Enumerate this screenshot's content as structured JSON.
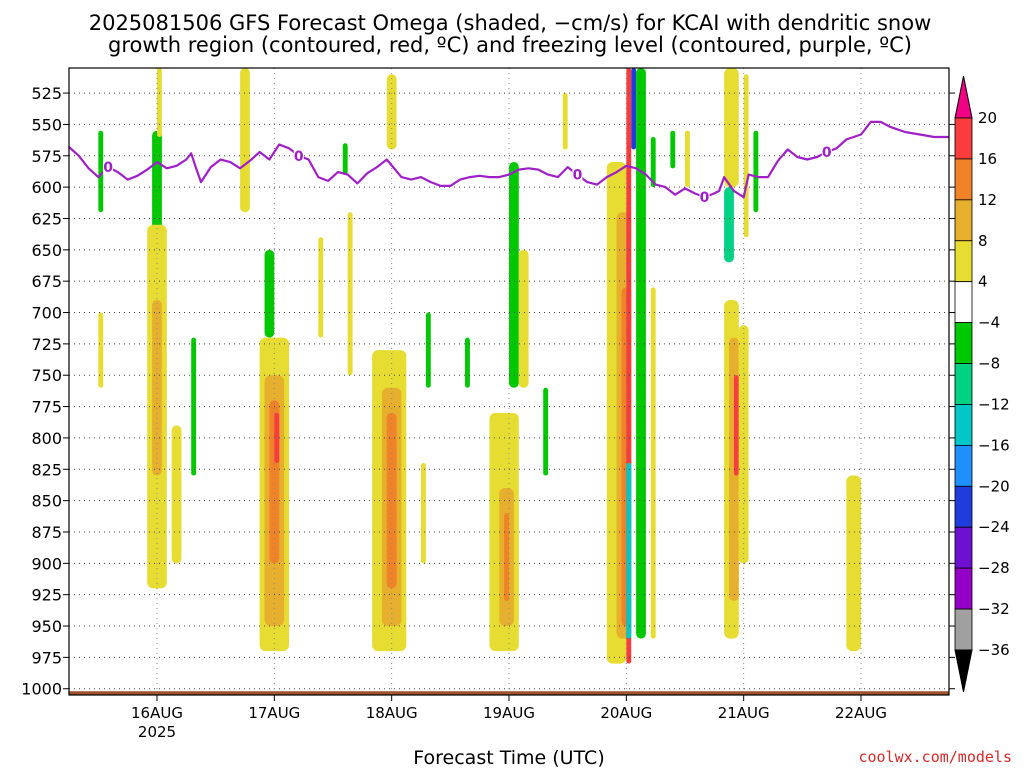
{
  "chart_data": {
    "type": "heatmap",
    "title_lines": [
      "2025081506 GFS Forecast Omega (shaded, −cm/s) for KCAI with dendritic snow",
      "growth region (contoured, red, ºC) and freezing level (contoured, purple, ºC)"
    ],
    "xlabel": "Forecast Time (UTC)",
    "ylabel": "",
    "y_axis": {
      "units": "hPa",
      "inverted": true,
      "ylim": [
        1005,
        505
      ],
      "ticks": [
        525,
        550,
        575,
        600,
        625,
        650,
        675,
        700,
        725,
        750,
        775,
        800,
        825,
        850,
        875,
        900,
        925,
        950,
        975,
        1000
      ]
    },
    "x_axis": {
      "xlim": [
        "2025-08-15 06",
        "2025-08-22 18"
      ],
      "ticks": [
        {
          "label": "16AUG",
          "time": "2025-08-16 00"
        },
        {
          "label": "17AUG",
          "time": "2025-08-17 00"
        },
        {
          "label": "18AUG",
          "time": "2025-08-18 00"
        },
        {
          "label": "19AUG",
          "time": "2025-08-19 00"
        },
        {
          "label": "20AUG",
          "time": "2025-08-20 00"
        },
        {
          "label": "21AUG",
          "time": "2025-08-21 00"
        },
        {
          "label": "22AUG",
          "time": "2025-08-22 00"
        }
      ],
      "year_label": "2025"
    },
    "grid": true,
    "colorbar": {
      "levels": [
        -36,
        -32,
        -28,
        -24,
        -20,
        -16,
        -12,
        -8,
        -4,
        4,
        8,
        12,
        16,
        20
      ],
      "colors": [
        "#000000",
        "#a0a0a0",
        "#9400c8",
        "#6e10d2",
        "#1f3ddc",
        "#1e90ff",
        "#00c8c8",
        "#00d283",
        "#00c800",
        "#ffffff",
        "#e6dc32",
        "#e6af2d",
        "#f08228",
        "#fa3c3c",
        "#f00082"
      ],
      "extend": "both"
    },
    "freezing_level": {
      "contour_label": "0",
      "color": "#a020c8",
      "points": [
        [
          "2025-08-15 06",
          568
        ],
        [
          "2025-08-15 08",
          575
        ],
        [
          "2025-08-15 10",
          585
        ],
        [
          "2025-08-15 12",
          592
        ],
        [
          "2025-08-15 14",
          584
        ],
        [
          "2025-08-15 16",
          588
        ],
        [
          "2025-08-15 18",
          594
        ],
        [
          "2025-08-15 20",
          591
        ],
        [
          "2025-08-15 22",
          586
        ],
        [
          "2025-08-16 00",
          580
        ],
        [
          "2025-08-16 02",
          585
        ],
        [
          "2025-08-16 04",
          583
        ],
        [
          "2025-08-16 06",
          578
        ],
        [
          "2025-08-16 07",
          573
        ],
        [
          "2025-08-16 08",
          585
        ],
        [
          "2025-08-16 09",
          596
        ],
        [
          "2025-08-16 11",
          584
        ],
        [
          "2025-08-16 13",
          578
        ],
        [
          "2025-08-16 15",
          580
        ],
        [
          "2025-08-16 17",
          585
        ],
        [
          "2025-08-16 19",
          579
        ],
        [
          "2025-08-16 21",
          572
        ],
        [
          "2025-08-16 23",
          578
        ],
        [
          "2025-08-17 01",
          566
        ],
        [
          "2025-08-17 03",
          569
        ],
        [
          "2025-08-17 05",
          575
        ],
        [
          "2025-08-17 07",
          578
        ],
        [
          "2025-08-17 09",
          592
        ],
        [
          "2025-08-17 11",
          595
        ],
        [
          "2025-08-17 13",
          588
        ],
        [
          "2025-08-17 15",
          590
        ],
        [
          "2025-08-17 17",
          597
        ],
        [
          "2025-08-17 19",
          589
        ],
        [
          "2025-08-17 21",
          584
        ],
        [
          "2025-08-17 23",
          578
        ],
        [
          "2025-08-18 02",
          592
        ],
        [
          "2025-08-18 04",
          594
        ],
        [
          "2025-08-18 06",
          592
        ],
        [
          "2025-08-18 08",
          596
        ],
        [
          "2025-08-18 10",
          599
        ],
        [
          "2025-08-18 12",
          599
        ],
        [
          "2025-08-18 14",
          594
        ],
        [
          "2025-08-18 16",
          592
        ],
        [
          "2025-08-18 18",
          591
        ],
        [
          "2025-08-18 20",
          592
        ],
        [
          "2025-08-18 22",
          592
        ],
        [
          "2025-08-19 00",
          590
        ],
        [
          "2025-08-19 02",
          586
        ],
        [
          "2025-08-19 04",
          585
        ],
        [
          "2025-08-19 06",
          586
        ],
        [
          "2025-08-19 08",
          590
        ],
        [
          "2025-08-19 10",
          592
        ],
        [
          "2025-08-19 12",
          584
        ],
        [
          "2025-08-19 14",
          590
        ],
        [
          "2025-08-19 16",
          596
        ],
        [
          "2025-08-19 18",
          598
        ],
        [
          "2025-08-19 20",
          592
        ],
        [
          "2025-08-19 22",
          588
        ],
        [
          "2025-08-20 00",
          583
        ],
        [
          "2025-08-20 02",
          585
        ],
        [
          "2025-08-20 04",
          590
        ],
        [
          "2025-08-20 06",
          598
        ],
        [
          "2025-08-20 08",
          600
        ],
        [
          "2025-08-20 10",
          606
        ],
        [
          "2025-08-20 12",
          601
        ],
        [
          "2025-08-20 14",
          605
        ],
        [
          "2025-08-20 16",
          608
        ],
        [
          "2025-08-20 18",
          605
        ],
        [
          "2025-08-20 19",
          603
        ],
        [
          "2025-08-20 20",
          592
        ],
        [
          "2025-08-20 22",
          603
        ],
        [
          "2025-08-21 00",
          608
        ],
        [
          "2025-08-21 01",
          590
        ],
        [
          "2025-08-21 03",
          592
        ],
        [
          "2025-08-21 05",
          592
        ],
        [
          "2025-08-21 07",
          579
        ],
        [
          "2025-08-21 09",
          570
        ],
        [
          "2025-08-21 11",
          576
        ],
        [
          "2025-08-21 13",
          578
        ],
        [
          "2025-08-21 15",
          576
        ],
        [
          "2025-08-21 17",
          572
        ],
        [
          "2025-08-21 19",
          569
        ],
        [
          "2025-08-21 21",
          562
        ],
        [
          "2025-08-22 00",
          558
        ],
        [
          "2025-08-22 02",
          548
        ],
        [
          "2025-08-22 04",
          548
        ],
        [
          "2025-08-22 06",
          552
        ],
        [
          "2025-08-22 09",
          556
        ],
        [
          "2025-08-22 12",
          558
        ],
        [
          "2025-08-22 15",
          560
        ],
        [
          "2025-08-22 18",
          560
        ]
      ]
    },
    "omega_cells": [
      {
        "t0": "2025-08-15 12",
        "t1": "2025-08-15 13",
        "p0": 555,
        "p1": 620,
        "level": -8
      },
      {
        "t0": "2025-08-15 23",
        "t1": "2025-08-16 01",
        "p0": 555,
        "p1": 650,
        "level": -8
      },
      {
        "t0": "2025-08-16 00",
        "t1": "2025-08-16 01",
        "p0": 505,
        "p1": 560,
        "level": 4
      },
      {
        "t0": "2025-08-15 22",
        "t1": "2025-08-16 02",
        "p0": 630,
        "p1": 920,
        "level": 4
      },
      {
        "t0": "2025-08-15 23",
        "t1": "2025-08-16 01",
        "p0": 690,
        "p1": 830,
        "level": 8
      },
      {
        "t0": "2025-08-15 12",
        "t1": "2025-08-15 13",
        "p0": 700,
        "p1": 760,
        "level": 4
      },
      {
        "t0": "2025-08-16 03",
        "t1": "2025-08-16 05",
        "p0": 790,
        "p1": 900,
        "level": 4
      },
      {
        "t0": "2025-08-16 07",
        "t1": "2025-08-16 08",
        "p0": 720,
        "p1": 830,
        "level": -8
      },
      {
        "t0": "2025-08-16 17",
        "t1": "2025-08-16 19",
        "p0": 505,
        "p1": 620,
        "level": 4
      },
      {
        "t0": "2025-08-16 22",
        "t1": "2025-08-17 00",
        "p0": 650,
        "p1": 720,
        "level": -8
      },
      {
        "t0": "2025-08-16 21",
        "t1": "2025-08-17 03",
        "p0": 720,
        "p1": 970,
        "level": 4
      },
      {
        "t0": "2025-08-16 22",
        "t1": "2025-08-17 02",
        "p0": 750,
        "p1": 950,
        "level": 8
      },
      {
        "t0": "2025-08-16 23",
        "t1": "2025-08-17 01",
        "p0": 770,
        "p1": 900,
        "level": 12
      },
      {
        "t0": "2025-08-17 00",
        "t1": "2025-08-17 01",
        "p0": 780,
        "p1": 820,
        "level": 16
      },
      {
        "t0": "2025-08-17 09",
        "t1": "2025-08-17 10",
        "p0": 640,
        "p1": 720,
        "level": 4
      },
      {
        "t0": "2025-08-17 14",
        "t1": "2025-08-17 15",
        "p0": 565,
        "p1": 590,
        "level": -8
      },
      {
        "t0": "2025-08-17 15",
        "t1": "2025-08-17 16",
        "p0": 620,
        "p1": 750,
        "level": 4
      },
      {
        "t0": "2025-08-17 20",
        "t1": "2025-08-18 03",
        "p0": 730,
        "p1": 970,
        "level": 4
      },
      {
        "t0": "2025-08-17 22",
        "t1": "2025-08-18 02",
        "p0": 760,
        "p1": 950,
        "level": 8
      },
      {
        "t0": "2025-08-17 23",
        "t1": "2025-08-18 01",
        "p0": 780,
        "p1": 920,
        "level": 12
      },
      {
        "t0": "2025-08-17 23",
        "t1": "2025-08-18 01",
        "p0": 510,
        "p1": 570,
        "level": 4
      },
      {
        "t0": "2025-08-18 06",
        "t1": "2025-08-18 07",
        "p0": 820,
        "p1": 900,
        "level": 4
      },
      {
        "t0": "2025-08-18 07",
        "t1": "2025-08-18 08",
        "p0": 700,
        "p1": 760,
        "level": -8
      },
      {
        "t0": "2025-08-18 15",
        "t1": "2025-08-18 16",
        "p0": 720,
        "p1": 760,
        "level": -8
      },
      {
        "t0": "2025-08-18 20",
        "t1": "2025-08-19 02",
        "p0": 780,
        "p1": 970,
        "level": 4
      },
      {
        "t0": "2025-08-18 22",
        "t1": "2025-08-19 01",
        "p0": 840,
        "p1": 950,
        "level": 8
      },
      {
        "t0": "2025-08-18 23",
        "t1": "2025-08-19 00",
        "p0": 860,
        "p1": 930,
        "level": 12
      },
      {
        "t0": "2025-08-19 00",
        "t1": "2025-08-19 02",
        "p0": 580,
        "p1": 760,
        "level": -8
      },
      {
        "t0": "2025-08-19 02",
        "t1": "2025-08-19 04",
        "p0": 650,
        "p1": 760,
        "level": 4
      },
      {
        "t0": "2025-08-19 07",
        "t1": "2025-08-19 08",
        "p0": 760,
        "p1": 830,
        "level": -8
      },
      {
        "t0": "2025-08-19 11",
        "t1": "2025-08-19 12",
        "p0": 525,
        "p1": 570,
        "level": 4
      },
      {
        "t0": "2025-08-19 20",
        "t1": "2025-08-20 00",
        "p0": 580,
        "p1": 980,
        "level": 4
      },
      {
        "t0": "2025-08-19 22",
        "t1": "2025-08-20 01",
        "p0": 620,
        "p1": 960,
        "level": 8
      },
      {
        "t0": "2025-08-19 23",
        "t1": "2025-08-20 01",
        "p0": 680,
        "p1": 950,
        "level": 12
      },
      {
        "t0": "2025-08-20 00",
        "t1": "2025-08-20 01",
        "p0": 505,
        "p1": 980,
        "level": 16
      },
      {
        "t0": "2025-08-20 00",
        "t1": "2025-08-20 01",
        "p0": 820,
        "p1": 960,
        "level": -16
      },
      {
        "t0": "2025-08-20 01",
        "t1": "2025-08-20 02",
        "p0": 505,
        "p1": 570,
        "level": -24
      },
      {
        "t0": "2025-08-20 02",
        "t1": "2025-08-20 04",
        "p0": 505,
        "p1": 960,
        "level": -8
      },
      {
        "t0": "2025-08-20 05",
        "t1": "2025-08-20 06",
        "p0": 680,
        "p1": 960,
        "level": 4
      },
      {
        "t0": "2025-08-20 05",
        "t1": "2025-08-20 06",
        "p0": 560,
        "p1": 600,
        "level": -8
      },
      {
        "t0": "2025-08-20 09",
        "t1": "2025-08-20 10",
        "p0": 555,
        "p1": 585,
        "level": -8
      },
      {
        "t0": "2025-08-20 12",
        "t1": "2025-08-20 13",
        "p0": 555,
        "p1": 600,
        "level": 4
      },
      {
        "t0": "2025-08-20 20",
        "t1": "2025-08-20 23",
        "p0": 505,
        "p1": 600,
        "level": 4
      },
      {
        "t0": "2025-08-20 20",
        "t1": "2025-08-20 22",
        "p0": 600,
        "p1": 660,
        "level": -12
      },
      {
        "t0": "2025-08-20 20",
        "t1": "2025-08-20 23",
        "p0": 690,
        "p1": 960,
        "level": 4
      },
      {
        "t0": "2025-08-20 21",
        "t1": "2025-08-20 23",
        "p0": 720,
        "p1": 930,
        "level": 8
      },
      {
        "t0": "2025-08-20 22",
        "t1": "2025-08-20 23",
        "p0": 750,
        "p1": 830,
        "level": 16
      },
      {
        "t0": "2025-08-20 23",
        "t1": "2025-08-21 01",
        "p0": 710,
        "p1": 900,
        "level": 4
      },
      {
        "t0": "2025-08-21 00",
        "t1": "2025-08-21 01",
        "p0": 510,
        "p1": 640,
        "level": 4
      },
      {
        "t0": "2025-08-21 02",
        "t1": "2025-08-21 03",
        "p0": 555,
        "p1": 620,
        "level": -8
      },
      {
        "t0": "2025-08-21 21",
        "t1": "2025-08-22 00",
        "p0": 830,
        "p1": 970,
        "level": 4
      }
    ],
    "terrain": {
      "surface_p": 1002,
      "color": "#a0522d"
    }
  },
  "credit": "coolwx.com/models"
}
